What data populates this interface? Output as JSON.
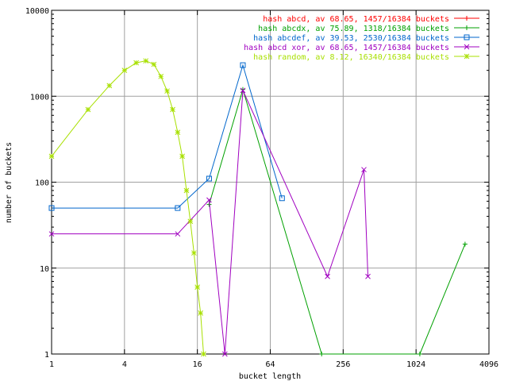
{
  "chart_data": {
    "type": "line",
    "xlabel": "bucket length",
    "ylabel": "number of buckets",
    "xscale": "log2",
    "yscale": "log10",
    "xlim": [
      1,
      4096
    ],
    "ylim": [
      1,
      10000
    ],
    "x_ticks": [
      1,
      4,
      16,
      64,
      256,
      1024,
      4096
    ],
    "x_tick_labels": [
      "1",
      "4",
      "16",
      "64",
      "256",
      "1024",
      "4096"
    ],
    "y_ticks": [
      1,
      10,
      100,
      1000,
      10000
    ],
    "y_tick_labels": [
      "1",
      "10",
      "100",
      "1000",
      "10000"
    ],
    "grid": true,
    "legend_position": "top-right",
    "series": [
      {
        "name": "hash abcd, av 68.65, 1457/16384 buckets",
        "color": "#ff0000",
        "marker": "plus",
        "x": [],
        "y": []
      },
      {
        "name": "hash abcdx, av 75.89, 1318/16384 buckets",
        "color": "#00a000",
        "marker": "plus",
        "x": [
          20,
          38,
          170,
          1100,
          2600
        ],
        "y": [
          55,
          1200,
          1,
          1,
          19
        ]
      },
      {
        "name": "hash abcdef, av 39.53, 2530/16384 buckets",
        "color": "#0066cc",
        "marker": "square",
        "x": [
          1,
          11,
          20,
          38,
          80
        ],
        "y": [
          50,
          50,
          110,
          2300,
          65
        ]
      },
      {
        "name": "hash abcd xor, av 68.65, 1457/16384 buckets",
        "color": "#a000c0",
        "marker": "x",
        "x": [
          1,
          11,
          20,
          27,
          38,
          190,
          380,
          410
        ],
        "y": [
          25,
          25,
          62,
          1,
          1170,
          8,
          140,
          8
        ]
      },
      {
        "name": "hash random, av 8.12, 16340/16384 buckets",
        "color": "#a8e000",
        "marker": "star",
        "x": [
          1,
          2,
          3,
          4,
          5,
          6,
          7,
          8,
          9,
          10,
          11,
          12,
          13,
          14,
          15,
          16,
          17,
          18
        ],
        "y": [
          200,
          700,
          1330,
          2000,
          2450,
          2580,
          2350,
          1700,
          1150,
          700,
          380,
          200,
          80,
          35,
          15,
          6,
          3,
          1
        ]
      }
    ]
  }
}
